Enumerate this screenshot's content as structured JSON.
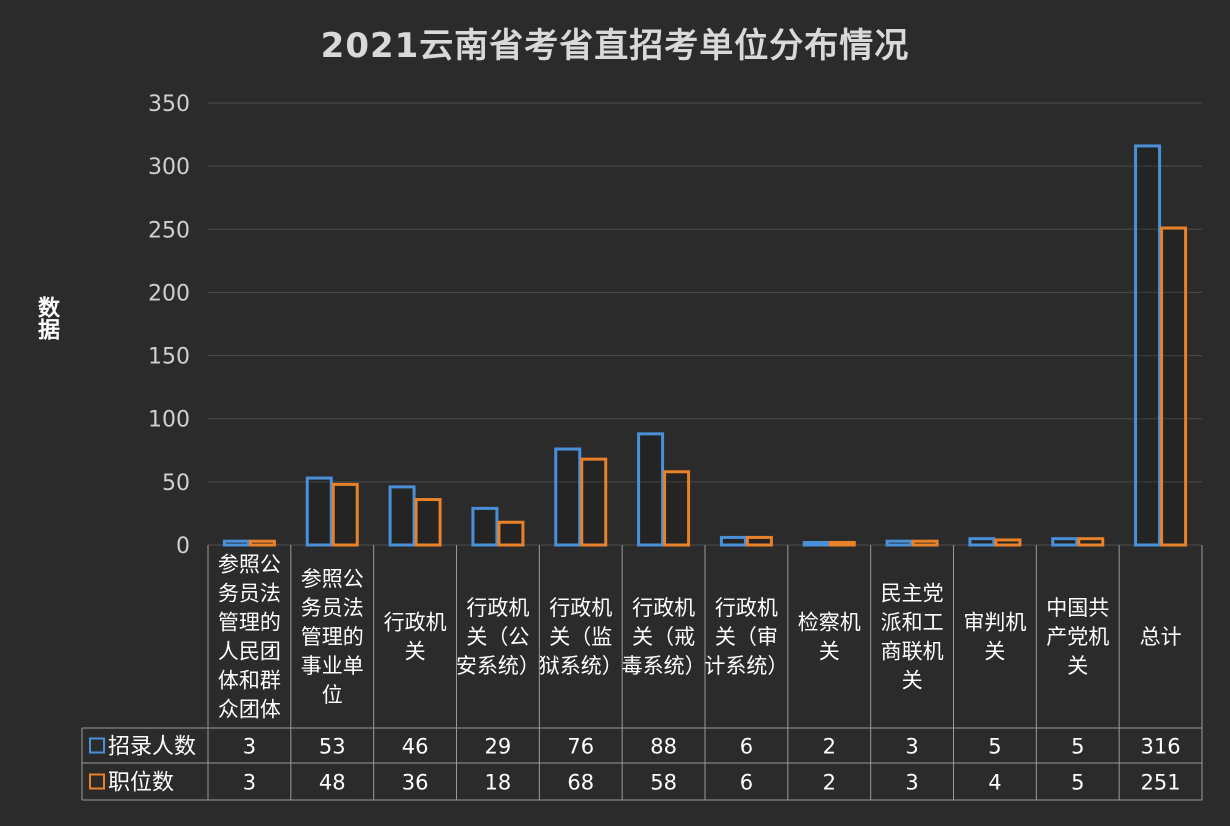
{
  "chart_data": {
    "type": "bar",
    "title": "2021云南省考省直招考单位分布情况",
    "ylabel": "数据",
    "xlabel": "",
    "ylim": [
      0,
      350
    ],
    "yticks": [
      0,
      50,
      100,
      150,
      200,
      250,
      300,
      350
    ],
    "grid": true,
    "legend_placement": "data-table-left",
    "categories": [
      "参照公务员法管理的人民团体和群众团体",
      "参照公务员法管理的事业单位",
      "行政机关",
      "行政机关（公安系统）",
      "行政机关（监狱系统）",
      "行政机关（戒毒系统）",
      "行政机关（审计系统）",
      "检察机关",
      "民主党派和工商联机关",
      "审判机关",
      "中国共产党机关",
      "总计"
    ],
    "category_lines": [
      [
        "参照公",
        "务员法",
        "管理的",
        "人民团",
        "体和群",
        "众团体"
      ],
      [
        "参照公",
        "务员法",
        "管理的",
        "事业单",
        "位"
      ],
      [
        "行政机",
        "关"
      ],
      [
        "行政机",
        "关（公",
        "安系统）"
      ],
      [
        "行政机",
        "关（监",
        "狱系统）"
      ],
      [
        "行政机",
        "关（戒",
        "毒系统）"
      ],
      [
        "行政机",
        "关（审",
        "计系统）"
      ],
      [
        "检察机",
        "关"
      ],
      [
        "民主党",
        "派和工",
        "商联机",
        "关"
      ],
      [
        "审判机",
        "关"
      ],
      [
        "中国共",
        "产党机",
        "关"
      ],
      [
        "总计"
      ]
    ],
    "series": [
      {
        "name": "招录人数",
        "color": "#4a90d9",
        "values": [
          3,
          53,
          46,
          29,
          76,
          88,
          6,
          2,
          3,
          5,
          5,
          316
        ]
      },
      {
        "name": "职位数",
        "color": "#e8812a",
        "values": [
          3,
          48,
          36,
          18,
          68,
          58,
          6,
          2,
          3,
          4,
          5,
          251
        ]
      }
    ]
  }
}
